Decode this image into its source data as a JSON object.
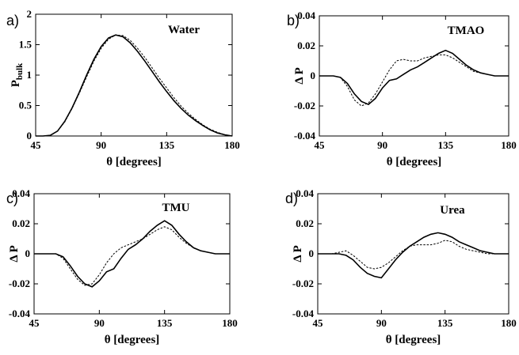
{
  "chart_data": [
    {
      "panel": "a)",
      "type": "line",
      "annotation": "Water",
      "xlabel": "θ [degrees]",
      "ylabel_main": "P",
      "ylabel_sub": "bulk",
      "xlim": [
        45,
        180
      ],
      "ylim": [
        0,
        2
      ],
      "xticks": [
        45,
        90,
        135,
        180
      ],
      "yticks": [
        0,
        0.5,
        1,
        1.5,
        2
      ],
      "ytick_labels": [
        "0",
        "0.5",
        "1",
        "1.5",
        "2"
      ],
      "series": [
        {
          "style": "solid",
          "x": [
            45,
            50,
            55,
            60,
            65,
            70,
            75,
            80,
            85,
            90,
            95,
            100,
            105,
            110,
            115,
            120,
            125,
            130,
            135,
            140,
            145,
            150,
            155,
            160,
            165,
            170,
            175,
            180
          ],
          "y": [
            0,
            0,
            0.01,
            0.08,
            0.24,
            0.46,
            0.72,
            1.0,
            1.26,
            1.47,
            1.61,
            1.66,
            1.63,
            1.53,
            1.39,
            1.23,
            1.06,
            0.89,
            0.73,
            0.58,
            0.45,
            0.34,
            0.25,
            0.17,
            0.1,
            0.05,
            0.02,
            0
          ]
        },
        {
          "style": "dashed",
          "x": [
            45,
            50,
            55,
            60,
            65,
            70,
            75,
            80,
            85,
            90,
            95,
            100,
            105,
            110,
            115,
            120,
            125,
            130,
            135,
            140,
            145,
            150,
            155,
            160,
            165,
            170,
            175,
            180
          ],
          "y": [
            0,
            0,
            0.01,
            0.08,
            0.23,
            0.45,
            0.7,
            0.97,
            1.23,
            1.44,
            1.59,
            1.66,
            1.65,
            1.57,
            1.44,
            1.29,
            1.12,
            0.95,
            0.79,
            0.63,
            0.49,
            0.37,
            0.27,
            0.18,
            0.11,
            0.06,
            0.02,
            0
          ]
        }
      ]
    },
    {
      "panel": "b)",
      "type": "line",
      "annotation": "TMAO",
      "xlabel": "θ [degrees]",
      "ylabel_main": "Δ P",
      "xlim": [
        45,
        180
      ],
      "ylim": [
        -0.04,
        0.04
      ],
      "xticks": [
        45,
        90,
        135,
        180
      ],
      "yticks": [
        -0.04,
        -0.02,
        0,
        0.02,
        0.04
      ],
      "ytick_labels": [
        "-0.04",
        "-0.02",
        "0",
        "0.02",
        "0.04"
      ],
      "series": [
        {
          "style": "solid",
          "x": [
            45,
            50,
            55,
            60,
            65,
            70,
            75,
            80,
            85,
            90,
            95,
            100,
            105,
            110,
            115,
            120,
            125,
            130,
            135,
            140,
            145,
            150,
            155,
            160,
            165,
            170,
            175,
            180
          ],
          "y": [
            0,
            0,
            0,
            -0.001,
            -0.005,
            -0.012,
            -0.017,
            -0.019,
            -0.015,
            -0.008,
            -0.003,
            -0.002,
            0.001,
            0.004,
            0.006,
            0.009,
            0.012,
            0.015,
            0.017,
            0.015,
            0.011,
            0.007,
            0.004,
            0.002,
            0.001,
            0,
            0,
            0
          ]
        },
        {
          "style": "dashed",
          "x": [
            45,
            50,
            55,
            60,
            65,
            70,
            75,
            80,
            85,
            90,
            95,
            100,
            105,
            110,
            115,
            120,
            125,
            130,
            135,
            140,
            145,
            150,
            155,
            160,
            165,
            170,
            175,
            180
          ],
          "y": [
            0,
            0,
            0,
            -0.001,
            -0.007,
            -0.016,
            -0.02,
            -0.018,
            -0.012,
            -0.004,
            0.004,
            0.01,
            0.011,
            0.01,
            0.01,
            0.012,
            0.013,
            0.014,
            0.014,
            0.012,
            0.009,
            0.006,
            0.003,
            0.002,
            0.001,
            0,
            0,
            0
          ]
        }
      ]
    },
    {
      "panel": "c)",
      "type": "line",
      "annotation": "TMU",
      "xlabel": "θ [degrees]",
      "ylabel_main": "Δ P",
      "xlim": [
        45,
        180
      ],
      "ylim": [
        -0.04,
        0.04
      ],
      "xticks": [
        45,
        90,
        135,
        180
      ],
      "yticks": [
        -0.04,
        -0.02,
        0,
        0.02,
        0.04
      ],
      "ytick_labels": [
        "-0.04",
        "-0.02",
        "0",
        "0.02",
        "0.04"
      ],
      "series": [
        {
          "style": "solid",
          "x": [
            45,
            50,
            55,
            60,
            65,
            70,
            75,
            80,
            85,
            90,
            95,
            100,
            105,
            110,
            115,
            120,
            125,
            130,
            135,
            140,
            145,
            150,
            155,
            160,
            165,
            170,
            175,
            180
          ],
          "y": [
            0,
            0,
            0,
            0,
            -0.002,
            -0.008,
            -0.015,
            -0.02,
            -0.022,
            -0.018,
            -0.012,
            -0.01,
            -0.003,
            0.003,
            0.006,
            0.01,
            0.015,
            0.019,
            0.022,
            0.019,
            0.013,
            0.008,
            0.004,
            0.002,
            0.001,
            0,
            0,
            0
          ]
        },
        {
          "style": "dashed",
          "x": [
            45,
            50,
            55,
            60,
            65,
            70,
            75,
            80,
            85,
            90,
            95,
            100,
            105,
            110,
            115,
            120,
            125,
            130,
            135,
            140,
            145,
            150,
            155,
            160,
            165,
            170,
            175,
            180
          ],
          "y": [
            0,
            0,
            0,
            0,
            -0.003,
            -0.01,
            -0.017,
            -0.021,
            -0.02,
            -0.014,
            -0.006,
            0.0,
            0.004,
            0.006,
            0.008,
            0.01,
            0.013,
            0.016,
            0.018,
            0.016,
            0.011,
            0.007,
            0.004,
            0.002,
            0.001,
            0,
            0,
            0
          ]
        }
      ]
    },
    {
      "panel": "d)",
      "type": "line",
      "annotation": "Urea",
      "xlabel": "θ [degrees]",
      "ylabel_main": "Δ P",
      "xlim": [
        45,
        180
      ],
      "ylim": [
        -0.04,
        0.04
      ],
      "xticks": [
        45,
        90,
        135,
        180
      ],
      "yticks": [
        -0.04,
        -0.02,
        0,
        0.02,
        0.04
      ],
      "ytick_labels": [
        "-0.04",
        "-0.02",
        "0",
        "0.02",
        "0.04"
      ],
      "series": [
        {
          "style": "solid",
          "x": [
            45,
            50,
            55,
            60,
            65,
            70,
            75,
            80,
            85,
            90,
            95,
            100,
            105,
            110,
            115,
            120,
            125,
            130,
            135,
            140,
            145,
            150,
            155,
            160,
            165,
            170,
            175,
            180
          ],
          "y": [
            0,
            0,
            0,
            0,
            -0.001,
            -0.004,
            -0.009,
            -0.013,
            -0.015,
            -0.016,
            -0.01,
            -0.004,
            0.001,
            0.005,
            0.008,
            0.011,
            0.013,
            0.014,
            0.013,
            0.011,
            0.008,
            0.006,
            0.004,
            0.002,
            0.001,
            0,
            0,
            0
          ]
        },
        {
          "style": "dashed",
          "x": [
            45,
            50,
            55,
            60,
            65,
            70,
            75,
            80,
            85,
            90,
            95,
            100,
            105,
            110,
            115,
            120,
            125,
            130,
            135,
            140,
            145,
            150,
            155,
            160,
            165,
            170,
            175,
            180
          ],
          "y": [
            0,
            0,
            0,
            0.001,
            0.002,
            -0.001,
            -0.005,
            -0.009,
            -0.01,
            -0.009,
            -0.006,
            -0.002,
            0.002,
            0.005,
            0.006,
            0.006,
            0.006,
            0.007,
            0.009,
            0.008,
            0.005,
            0.003,
            0.002,
            0.001,
            0,
            0,
            0,
            0
          ]
        }
      ]
    }
  ]
}
